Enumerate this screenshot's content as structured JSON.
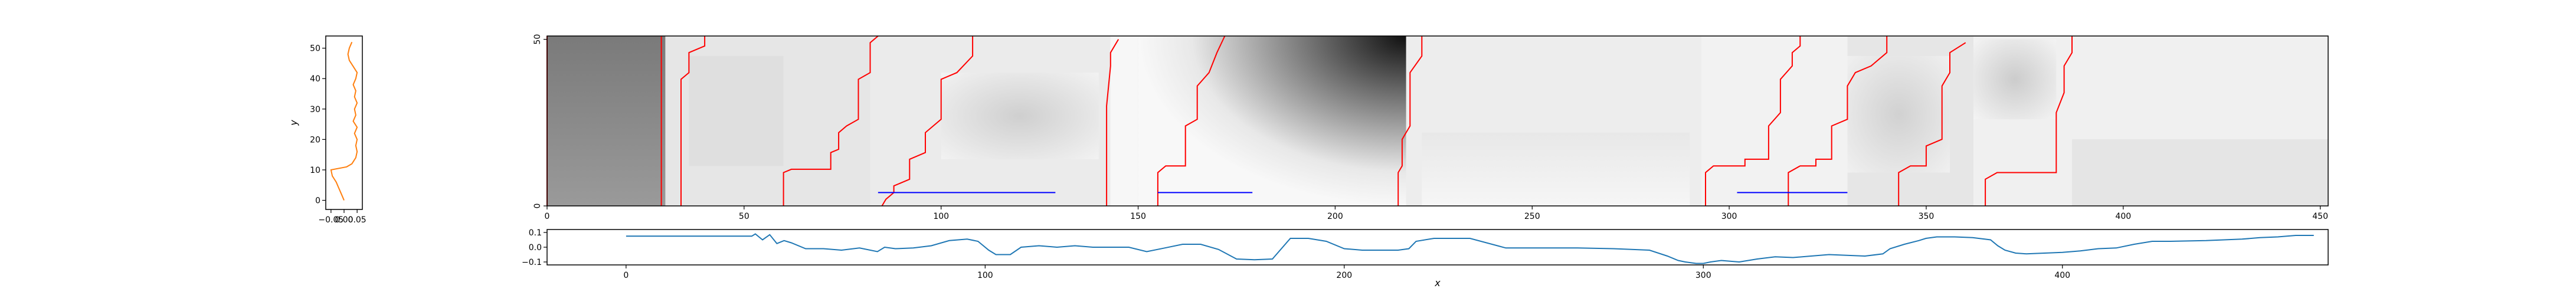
{
  "chart_data": [
    {
      "name": "left-profile",
      "type": "line",
      "ylabel": "y",
      "xlabel": "",
      "xlim": [
        -0.07,
        0.07
      ],
      "ylim": [
        -3,
        54
      ],
      "xticks": [
        -0.05,
        0.0,
        0.05
      ],
      "xtick_labels": [
        "−0.05",
        "0.00",
        "0.05"
      ],
      "yticks": [
        0,
        10,
        20,
        30,
        40,
        50
      ],
      "series": [
        {
          "color": "#ff7f0e",
          "points": [
            [
              0.0,
              0
            ],
            [
              -0.01,
              2
            ],
            [
              -0.02,
              4
            ],
            [
              -0.03,
              6
            ],
            [
              -0.045,
              8
            ],
            [
              -0.05,
              10
            ],
            [
              0.01,
              11
            ],
            [
              0.03,
              12
            ],
            [
              0.045,
              14
            ],
            [
              0.05,
              16
            ],
            [
              0.045,
              18
            ],
            [
              0.05,
              20
            ],
            [
              0.04,
              22
            ],
            [
              0.05,
              24
            ],
            [
              0.035,
              26
            ],
            [
              0.045,
              28
            ],
            [
              0.04,
              30
            ],
            [
              0.05,
              32
            ],
            [
              0.04,
              34
            ],
            [
              0.045,
              36
            ],
            [
              0.035,
              38
            ],
            [
              0.045,
              40
            ],
            [
              0.05,
              42
            ],
            [
              0.035,
              44
            ],
            [
              0.02,
              46
            ],
            [
              0.015,
              48
            ],
            [
              0.02,
              50
            ],
            [
              0.03,
              52
            ]
          ]
        }
      ]
    },
    {
      "name": "heatmap",
      "type": "heatmap",
      "xlim": [
        0,
        452
      ],
      "ylim": [
        0,
        51
      ],
      "xticks": [
        0,
        50,
        100,
        150,
        200,
        250,
        300,
        350,
        400,
        450
      ],
      "yticks": [
        0,
        50
      ],
      "colormap": "grays",
      "segments": [
        {
          "x0": 0,
          "x1": 30,
          "tone": 0.45
        },
        {
          "x0": 30,
          "x1": 82,
          "tone": 0.9
        },
        {
          "x0": 82,
          "x1": 143,
          "tone": 0.92
        },
        {
          "x0": 143,
          "x1": 150,
          "tone": 0.97
        },
        {
          "x0": 150,
          "x1": 218,
          "tone": 0.7
        },
        {
          "x0": 218,
          "x1": 293,
          "tone": 0.93
        },
        {
          "x0": 293,
          "x1": 330,
          "tone": 0.95
        },
        {
          "x0": 330,
          "x1": 362,
          "tone": 0.9
        },
        {
          "x0": 362,
          "x1": 452,
          "tone": 0.94
        }
      ],
      "vertical_markers": [
        {
          "color": "#ff0000",
          "points": [
            [
              0,
              0
            ],
            [
              0,
              51
            ]
          ]
        },
        {
          "color": "#ff0000",
          "points": [
            [
              29,
              0
            ],
            [
              29,
              51
            ]
          ]
        },
        {
          "color": "#ff0000",
          "points": [
            [
              34,
              0
            ],
            [
              34,
              38
            ],
            [
              36,
              40
            ],
            [
              36,
              46
            ],
            [
              40,
              48
            ],
            [
              40,
              51
            ]
          ]
        },
        {
          "color": "#ff0000",
          "points": [
            [
              60,
              0
            ],
            [
              60,
              10
            ],
            [
              62,
              11
            ],
            [
              72,
              11
            ],
            [
              72,
              16
            ],
            [
              74,
              17
            ],
            [
              74,
              22
            ],
            [
              76,
              24
            ],
            [
              79,
              26
            ],
            [
              79,
              38
            ],
            [
              82,
              40
            ],
            [
              82,
              49
            ],
            [
              84,
              51
            ]
          ]
        },
        {
          "color": "#ff0000",
          "points": [
            [
              85,
              0
            ],
            [
              86,
              2
            ],
            [
              88,
              4
            ],
            [
              88,
              6
            ],
            [
              92,
              8
            ],
            [
              92,
              14
            ],
            [
              96,
              16
            ],
            [
              96,
              22
            ],
            [
              98,
              24
            ],
            [
              100,
              26
            ],
            [
              100,
              38
            ],
            [
              104,
              40
            ],
            [
              108,
              45
            ],
            [
              108,
              51
            ]
          ]
        },
        {
          "color": "#ff0000",
          "points": [
            [
              142,
              0
            ],
            [
              142,
              30
            ],
            [
              143,
              42
            ],
            [
              143,
              46
            ],
            [
              145,
              50
            ]
          ]
        },
        {
          "color": "#ff0000",
          "points": [
            [
              155,
              0
            ],
            [
              155,
              10
            ],
            [
              157,
              12
            ],
            [
              162,
              12
            ],
            [
              162,
              24
            ],
            [
              165,
              26
            ],
            [
              165,
              36
            ],
            [
              168,
              40
            ],
            [
              170,
              46
            ],
            [
              172,
              51
            ]
          ]
        },
        {
          "color": "#ff0000",
          "points": [
            [
              216,
              0
            ],
            [
              216,
              10
            ],
            [
              217,
              12
            ],
            [
              217,
              20
            ],
            [
              219,
              24
            ],
            [
              219,
              40
            ],
            [
              222,
              45
            ],
            [
              222,
              51
            ]
          ]
        },
        {
          "color": "#ff0000",
          "points": [
            [
              294,
              0
            ],
            [
              294,
              10
            ],
            [
              296,
              12
            ],
            [
              304,
              12
            ],
            [
              304,
              14
            ],
            [
              310,
              14
            ],
            [
              310,
              24
            ],
            [
              313,
              28
            ],
            [
              313,
              38
            ],
            [
              316,
              42
            ],
            [
              316,
              46
            ],
            [
              318,
              48
            ],
            [
              318,
              51
            ]
          ]
        },
        {
          "color": "#ff0000",
          "points": [
            [
              315,
              0
            ],
            [
              315,
              10
            ],
            [
              318,
              12
            ],
            [
              322,
              12
            ],
            [
              322,
              14
            ],
            [
              326,
              14
            ],
            [
              326,
              24
            ],
            [
              330,
              26
            ],
            [
              330,
              36
            ],
            [
              332,
              40
            ],
            [
              336,
              42
            ],
            [
              340,
              46
            ],
            [
              340,
              51
            ]
          ]
        },
        {
          "color": "#ff0000",
          "points": [
            [
              343,
              0
            ],
            [
              343,
              10
            ],
            [
              346,
              12
            ],
            [
              350,
              12
            ],
            [
              350,
              18
            ],
            [
              354,
              20
            ],
            [
              354,
              36
            ],
            [
              356,
              40
            ],
            [
              356,
              46
            ],
            [
              360,
              49
            ]
          ]
        },
        {
          "color": "#ff0000",
          "points": [
            [
              365,
              0
            ],
            [
              365,
              8
            ],
            [
              368,
              10
            ],
            [
              383,
              10
            ],
            [
              383,
              28
            ],
            [
              385,
              34
            ],
            [
              385,
              42
            ],
            [
              387,
              46
            ],
            [
              387,
              51
            ]
          ]
        }
      ],
      "horizontal_markers": [
        {
          "color": "#0000ff",
          "x": [
            84,
            129
          ],
          "y": 4
        },
        {
          "color": "#0000ff",
          "x": [
            155,
            179
          ],
          "y": 4
        },
        {
          "color": "#0000ff",
          "x": [
            302,
            330
          ],
          "y": 4
        }
      ]
    },
    {
      "name": "bottom-signal",
      "type": "line",
      "xlabel": "x",
      "ylabel": "",
      "xlim": [
        -22,
        474
      ],
      "ylim": [
        -0.12,
        0.12
      ],
      "xticks": [
        0,
        100,
        200,
        300,
        400
      ],
      "yticks": [
        -0.1,
        0.0,
        0.1
      ],
      "ytick_labels": [
        "−0.1",
        "0.0",
        "0.1"
      ],
      "series": [
        {
          "color": "#1f77b4",
          "points": [
            [
              0,
              0.075
            ],
            [
              35,
              0.075
            ],
            [
              36,
              0.09
            ],
            [
              38,
              0.05
            ],
            [
              40,
              0.085
            ],
            [
              42,
              0.025
            ],
            [
              44,
              0.045
            ],
            [
              46,
              0.03
            ],
            [
              50,
              -0.01
            ],
            [
              55,
              -0.01
            ],
            [
              60,
              -0.02
            ],
            [
              65,
              -0.005
            ],
            [
              70,
              -0.03
            ],
            [
              72,
              0.0
            ],
            [
              75,
              -0.01
            ],
            [
              80,
              -0.005
            ],
            [
              85,
              0.01
            ],
            [
              90,
              0.045
            ],
            [
              95,
              0.055
            ],
            [
              98,
              0.04
            ],
            [
              101,
              -0.02
            ],
            [
              103,
              -0.05
            ],
            [
              107,
              -0.05
            ],
            [
              110,
              0.0
            ],
            [
              115,
              0.01
            ],
            [
              120,
              0.0
            ],
            [
              125,
              0.01
            ],
            [
              130,
              0.0
            ],
            [
              140,
              0.0
            ],
            [
              145,
              -0.03
            ],
            [
              150,
              -0.005
            ],
            [
              155,
              0.02
            ],
            [
              160,
              0.02
            ],
            [
              165,
              -0.015
            ],
            [
              170,
              -0.08
            ],
            [
              175,
              -0.085
            ],
            [
              180,
              -0.08
            ],
            [
              185,
              0.06
            ],
            [
              190,
              0.06
            ],
            [
              195,
              0.04
            ],
            [
              200,
              -0.01
            ],
            [
              205,
              -0.02
            ],
            [
              210,
              -0.02
            ],
            [
              215,
              -0.02
            ],
            [
              218,
              -0.01
            ],
            [
              220,
              0.04
            ],
            [
              225,
              0.06
            ],
            [
              235,
              0.06
            ],
            [
              245,
              -0.005
            ],
            [
              265,
              -0.005
            ],
            [
              275,
              -0.01
            ],
            [
              285,
              -0.02
            ],
            [
              290,
              -0.06
            ],
            [
              293,
              -0.09
            ],
            [
              295,
              -0.1
            ],
            [
              298,
              -0.11
            ],
            [
              300,
              -0.11
            ],
            [
              302,
              -0.1
            ],
            [
              305,
              -0.09
            ],
            [
              310,
              -0.1
            ],
            [
              315,
              -0.08
            ],
            [
              320,
              -0.065
            ],
            [
              325,
              -0.07
            ],
            [
              330,
              -0.06
            ],
            [
              335,
              -0.05
            ],
            [
              345,
              -0.06
            ],
            [
              350,
              -0.045
            ],
            [
              352,
              -0.01
            ],
            [
              356,
              0.02
            ],
            [
              360,
              0.045
            ],
            [
              362,
              0.06
            ],
            [
              365,
              0.07
            ],
            [
              370,
              0.07
            ],
            [
              375,
              0.065
            ],
            [
              380,
              0.05
            ],
            [
              382,
              0.01
            ],
            [
              384,
              -0.02
            ],
            [
              387,
              -0.04
            ],
            [
              390,
              -0.045
            ],
            [
              395,
              -0.04
            ],
            [
              400,
              -0.035
            ],
            [
              405,
              -0.025
            ],
            [
              410,
              -0.01
            ],
            [
              415,
              -0.005
            ],
            [
              420,
              0.02
            ],
            [
              425,
              0.04
            ],
            [
              430,
              0.04
            ],
            [
              440,
              0.045
            ],
            [
              445,
              0.05
            ],
            [
              450,
              0.055
            ],
            [
              455,
              0.065
            ],
            [
              460,
              0.07
            ],
            [
              465,
              0.08
            ],
            [
              470,
              0.08
            ]
          ]
        }
      ]
    }
  ]
}
